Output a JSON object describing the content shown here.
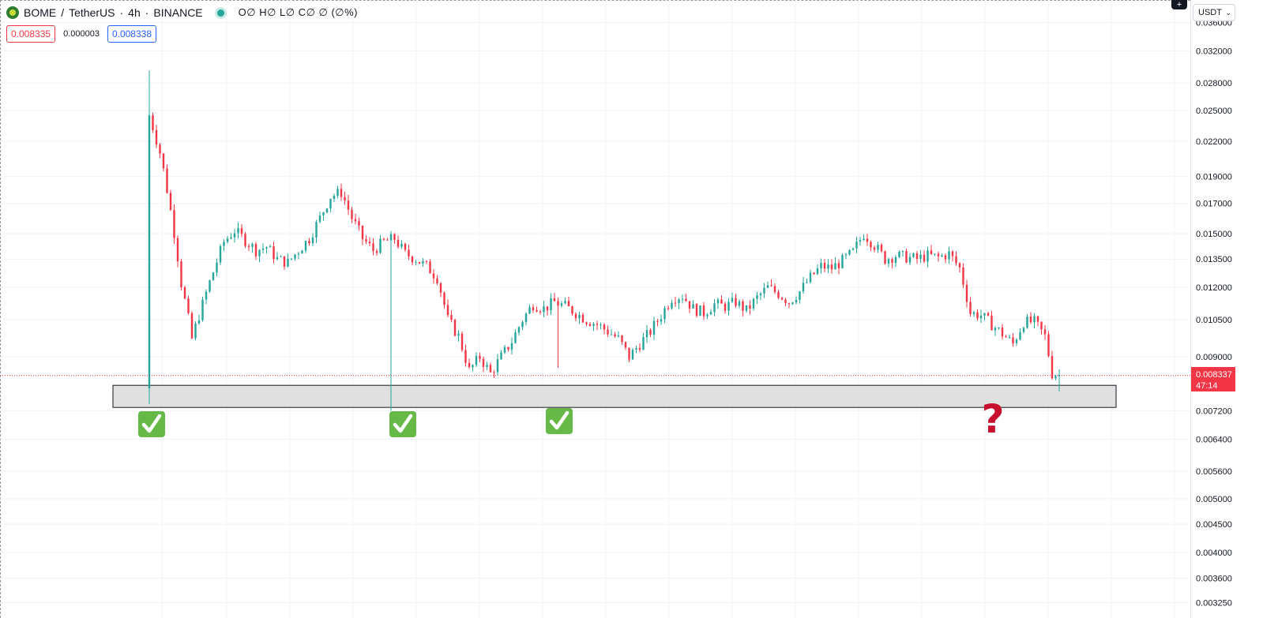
{
  "header": {
    "symbol": "BOME",
    "quote": "TetherUS",
    "interval": "4h",
    "exchange": "BINANCE",
    "ohlc_text": "O∅ H∅ L∅ C∅ ∅ (∅%)"
  },
  "quotes": {
    "bid": "0.008335",
    "spread": "0.000003",
    "ask": "0.008338"
  },
  "currency_select": {
    "value": "USDT"
  },
  "price_scale": {
    "ticks": [
      "0.036000",
      "0.032000",
      "0.028000",
      "0.025000",
      "0.022000",
      "0.019000",
      "0.017000",
      "0.015000",
      "0.013500",
      "0.012000",
      "0.010500",
      "0.009000",
      "0.007200",
      "0.006400",
      "0.005600",
      "0.005000",
      "0.004500",
      "0.004000",
      "0.003600",
      "0.003250"
    ],
    "last_price": "0.008337",
    "countdown": "47:14"
  },
  "colors": {
    "up": "#26a69a",
    "down": "#f23645",
    "zone_fill": "#e0e0e0",
    "check_bg": "#66b847",
    "question": "#c8102e"
  },
  "annotations": {
    "support_zone": {
      "low": 0.0073,
      "high": 0.008
    },
    "checkmarks": 3,
    "question_mark": "?"
  },
  "chart_data": {
    "type": "candlestick",
    "title": "",
    "scale": "log",
    "ylim": [
      0.00305,
      0.0395
    ],
    "series": [
      {
        "name": "",
        "anchors": [
          [
            0,
            0.0245
          ],
          [
            3,
            0.021
          ],
          [
            6,
            0.0165
          ],
          [
            9,
            0.0122
          ],
          [
            12,
            0.0097
          ],
          [
            15,
            0.0112
          ],
          [
            18,
            0.0128
          ],
          [
            21,
            0.0145
          ],
          [
            24,
            0.0152
          ],
          [
            27,
            0.0146
          ],
          [
            30,
            0.014
          ],
          [
            33,
            0.0142
          ],
          [
            36,
            0.0135
          ],
          [
            39,
            0.0133
          ],
          [
            42,
            0.014
          ],
          [
            45,
            0.0147
          ],
          [
            48,
            0.016
          ],
          [
            51,
            0.0175
          ],
          [
            54,
            0.0178
          ],
          [
            57,
            0.016
          ],
          [
            60,
            0.0147
          ],
          [
            63,
            0.014
          ],
          [
            66,
            0.0145
          ],
          [
            69,
            0.0147
          ],
          [
            72,
            0.0138
          ],
          [
            75,
            0.0135
          ],
          [
            78,
            0.0131
          ],
          [
            81,
            0.0125
          ],
          [
            84,
            0.0105
          ],
          [
            87,
            0.0098
          ],
          [
            90,
            0.0085
          ],
          [
            93,
            0.009
          ],
          [
            96,
            0.0084
          ],
          [
            99,
            0.009
          ],
          [
            102,
            0.0096
          ],
          [
            105,
            0.0105
          ],
          [
            108,
            0.0112
          ],
          [
            111,
            0.011
          ],
          [
            114,
            0.0113
          ],
          [
            117,
            0.0111
          ],
          [
            120,
            0.0108
          ],
          [
            123,
            0.0105
          ],
          [
            126,
            0.0103
          ],
          [
            129,
            0.01
          ],
          [
            132,
            0.0097
          ],
          [
            135,
            0.009
          ],
          [
            138,
            0.0095
          ],
          [
            141,
            0.01
          ],
          [
            144,
            0.0107
          ],
          [
            147,
            0.0115
          ],
          [
            150,
            0.0116
          ],
          [
            153,
            0.011
          ],
          [
            156,
            0.0108
          ],
          [
            159,
            0.0112
          ],
          [
            162,
            0.0111
          ],
          [
            165,
            0.0113
          ],
          [
            168,
            0.0109
          ],
          [
            171,
            0.0115
          ],
          [
            174,
            0.012
          ],
          [
            177,
            0.0117
          ],
          [
            180,
            0.0113
          ],
          [
            183,
            0.0118
          ],
          [
            186,
            0.0125
          ],
          [
            189,
            0.0131
          ],
          [
            192,
            0.013
          ],
          [
            195,
            0.0134
          ],
          [
            198,
            0.0139
          ],
          [
            201,
            0.015
          ],
          [
            204,
            0.0143
          ],
          [
            207,
            0.0135
          ],
          [
            210,
            0.0137
          ],
          [
            213,
            0.0136
          ],
          [
            216,
            0.0135
          ],
          [
            219,
            0.0137
          ],
          [
            222,
            0.0136
          ],
          [
            225,
            0.0138
          ],
          [
            228,
            0.013
          ],
          [
            231,
            0.0108
          ],
          [
            234,
            0.0107
          ],
          [
            237,
            0.0103
          ],
          [
            240,
            0.0099
          ],
          [
            243,
            0.0095
          ],
          [
            246,
            0.0104
          ],
          [
            249,
            0.0104
          ],
          [
            252,
            0.0098
          ],
          [
            254,
            0.0084
          ],
          [
            256,
            0.00835
          ]
        ]
      }
    ]
  }
}
